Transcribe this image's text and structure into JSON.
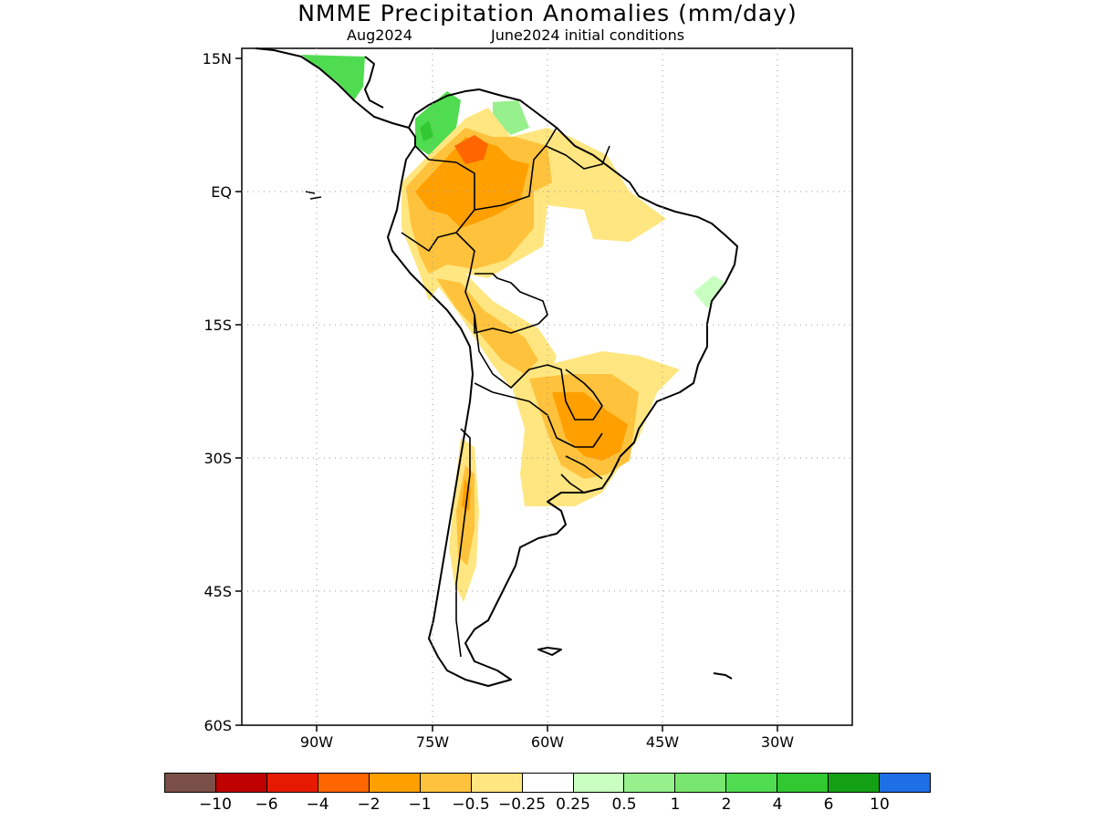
{
  "title": "NMME Precipitation Anomalies (mm/day)",
  "valid_month": "Aug2024",
  "init_conditions": "June2024 initial conditions",
  "lat_labels": [
    "15N",
    "EQ",
    "15S",
    "30S",
    "45S",
    "60S"
  ],
  "lon_labels": [
    "90W",
    "75W",
    "60W",
    "45W",
    "30W"
  ],
  "legend": {
    "colors": [
      "#7a5048",
      "#bf0000",
      "#e61a00",
      "#ff6600",
      "#ffa000",
      "#ffc23c",
      "#ffe680",
      "#ffffff",
      "#c8ffc0",
      "#96f08c",
      "#78e66e",
      "#50dc50",
      "#32c832",
      "#14a014",
      "#1e6ee6"
    ],
    "labels": [
      "−10",
      "−6",
      "−4",
      "−2",
      "−1",
      "−0.5",
      "−0.25",
      "0.25",
      "0.5",
      "1",
      "2",
      "4",
      "6",
      "10"
    ]
  }
}
